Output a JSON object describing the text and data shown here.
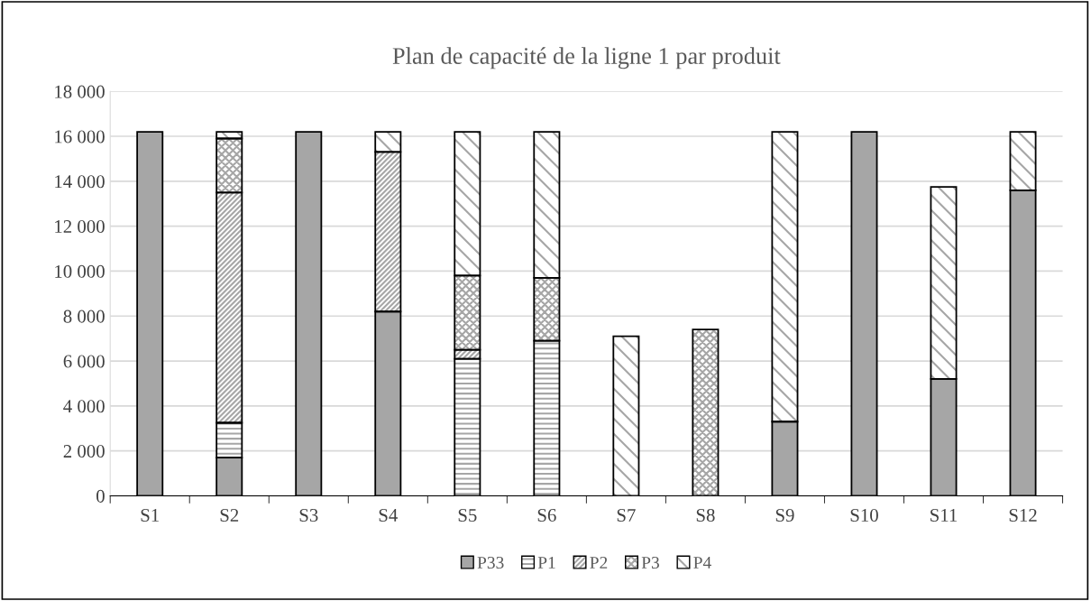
{
  "chart_data": {
    "type": "bar",
    "stacked": true,
    "title": "Plan de capacité de la ligne 1 par produit",
    "categories": [
      "S1",
      "S2",
      "S3",
      "S4",
      "S5",
      "S6",
      "S7",
      "S8",
      "S9",
      "S10",
      "S11",
      "S12"
    ],
    "series": [
      {
        "name": "P33",
        "color": "#a6a6a6",
        "values": [
          16200,
          1700,
          16200,
          8200,
          0,
          0,
          0,
          0,
          3300,
          16200,
          5200,
          13600
        ]
      },
      {
        "name": "P1",
        "color": "#a6a6a6",
        "values": [
          0,
          1550,
          0,
          0,
          6100,
          6900,
          0,
          0,
          0,
          0,
          0,
          0
        ]
      },
      {
        "name": "P2",
        "color": "#a6a6a6",
        "values": [
          0,
          10250,
          0,
          7100,
          400,
          0,
          0,
          0,
          0,
          0,
          0,
          0
        ]
      },
      {
        "name": "P3",
        "color": "#a6a6a6",
        "values": [
          0,
          2400,
          0,
          0,
          3300,
          2800,
          0,
          7400,
          0,
          0,
          0,
          0
        ]
      },
      {
        "name": "P4",
        "color": "#a6a6a6",
        "values": [
          0,
          300,
          0,
          900,
          6400,
          6500,
          7100,
          0,
          12900,
          0,
          8550,
          2600
        ]
      }
    ],
    "ylim": [
      0,
      18000
    ],
    "yticks": [
      0,
      {
        "value": 2000,
        "label": "2 000"
      },
      {
        "value": 4000,
        "label": "4 000"
      },
      {
        "value": 6000,
        "label": "6 000"
      },
      {
        "value": 8000,
        "label": "8 000"
      },
      {
        "value": 10000,
        "label": "10 000"
      },
      {
        "value": 12000,
        "label": "12 000"
      },
      {
        "value": 14000,
        "label": "14 000"
      },
      {
        "value": 16000,
        "label": "16 000"
      },
      {
        "value": 18000,
        "label": "18 000"
      }
    ],
    "grid": "y",
    "legend": "bottom"
  }
}
